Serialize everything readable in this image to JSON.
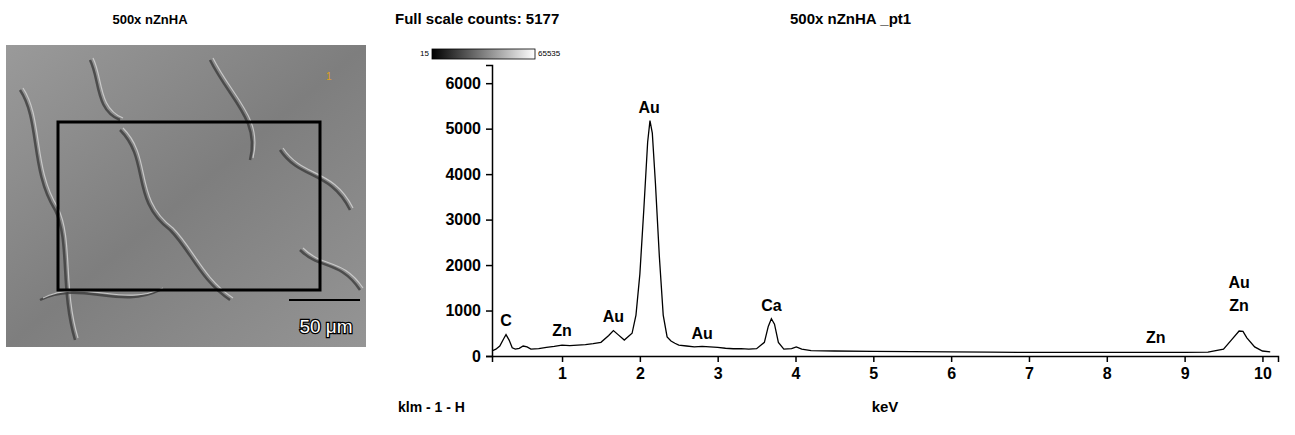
{
  "image_panel": {
    "title": "500x nZnHA",
    "colorbar": {
      "range": [
        15,
        65535
      ],
      "ticks": [
        15,
        65535
      ]
    },
    "scale_bar": "50 μm",
    "region_label": "1"
  },
  "chart_data": {
    "type": "line",
    "title": "Full scale counts: 5177",
    "subtitle": "500x nZnHA _pt1",
    "x_label": "keV",
    "footer": "klm - 1 - H",
    "color": "#000000",
    "grid": false,
    "xlim": [
      0.1,
      10.2
    ],
    "ylim": [
      0,
      6400
    ],
    "xticks": [
      1,
      2,
      3,
      4,
      5,
      6,
      7,
      8,
      9,
      10
    ],
    "yticks": [
      0,
      1000,
      2000,
      3000,
      4000,
      5000,
      6000
    ],
    "x": [
      0.1,
      0.15,
      0.2,
      0.25,
      0.28,
      0.32,
      0.36,
      0.4,
      0.45,
      0.5,
      0.55,
      0.6,
      0.7,
      0.8,
      0.9,
      1.0,
      1.1,
      1.2,
      1.3,
      1.4,
      1.5,
      1.6,
      1.66,
      1.72,
      1.8,
      1.9,
      1.95,
      2.0,
      2.05,
      2.1,
      2.13,
      2.16,
      2.2,
      2.25,
      2.3,
      2.35,
      2.4,
      2.45,
      2.5,
      2.6,
      2.7,
      2.8,
      2.9,
      3.0,
      3.1,
      3.2,
      3.3,
      3.4,
      3.5,
      3.6,
      3.65,
      3.69,
      3.73,
      3.78,
      3.85,
      3.95,
      4.01,
      4.08,
      4.2,
      4.5,
      5.0,
      5.5,
      6.0,
      6.5,
      7.0,
      7.5,
      8.0,
      8.5,
      9.0,
      9.3,
      9.5,
      9.6,
      9.7,
      9.75,
      9.8,
      9.9,
      10.0,
      10.1
    ],
    "values": [
      110,
      150,
      220,
      380,
      470,
      350,
      180,
      150,
      170,
      220,
      200,
      150,
      160,
      190,
      210,
      240,
      230,
      240,
      250,
      270,
      300,
      450,
      560,
      470,
      350,
      500,
      900,
      1800,
      3200,
      4700,
      5177,
      4900,
      3800,
      2200,
      900,
      420,
      330,
      280,
      240,
      220,
      200,
      210,
      200,
      190,
      170,
      160,
      160,
      150,
      160,
      300,
      650,
      820,
      700,
      300,
      150,
      160,
      200,
      150,
      120,
      110,
      100,
      95,
      90,
      85,
      80,
      80,
      80,
      80,
      80,
      85,
      150,
      350,
      550,
      540,
      400,
      200,
      110,
      90
    ],
    "annotations": [
      {
        "text": "C",
        "x": 0.28,
        "y": 650
      },
      {
        "text": "Zn",
        "x": 1.0,
        "y": 450
      },
      {
        "text": "Au",
        "x": 1.66,
        "y": 750
      },
      {
        "text": "Au",
        "x": 2.12,
        "y": 5350
      },
      {
        "text": "Au",
        "x": 2.8,
        "y": 380
      },
      {
        "text": "Ca",
        "x": 3.69,
        "y": 1000
      },
      {
        "text": "Zn",
        "x": 8.63,
        "y": 280
      },
      {
        "text": "Au",
        "x": 9.7,
        "y": 1500
      },
      {
        "text": "Zn",
        "x": 9.7,
        "y": 1000
      }
    ]
  }
}
